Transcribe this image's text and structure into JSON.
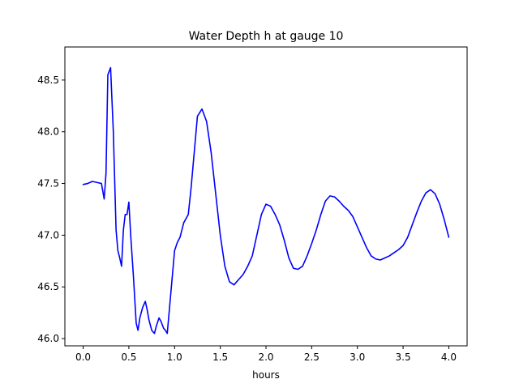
{
  "chart_data": {
    "type": "line",
    "title": "Water Depth h at gauge 10",
    "xlabel": "hours",
    "ylabel": "",
    "xlim": [
      -0.2,
      4.2
    ],
    "ylim": [
      45.93,
      48.82
    ],
    "xticks": [
      0.0,
      0.5,
      1.0,
      1.5,
      2.0,
      2.5,
      3.0,
      3.5,
      4.0
    ],
    "xtick_labels": [
      "0.0",
      "0.5",
      "1.0",
      "1.5",
      "2.0",
      "2.5",
      "3.0",
      "3.5",
      "4.0"
    ],
    "yticks": [
      46.0,
      46.5,
      47.0,
      47.5,
      48.0,
      48.5
    ],
    "ytick_labels": [
      "46.0",
      "46.5",
      "47.0",
      "47.5",
      "48.0",
      "48.5"
    ],
    "grid": false,
    "series": [
      {
        "color": "#0000ff",
        "x": [
          0.0,
          0.05,
          0.1,
          0.15,
          0.2,
          0.23,
          0.25,
          0.27,
          0.3,
          0.33,
          0.36,
          0.38,
          0.4,
          0.42,
          0.44,
          0.46,
          0.48,
          0.5,
          0.52,
          0.55,
          0.58,
          0.6,
          0.62,
          0.65,
          0.68,
          0.7,
          0.72,
          0.75,
          0.78,
          0.8,
          0.83,
          0.85,
          0.88,
          0.9,
          0.92,
          0.95,
          0.98,
          1.0,
          1.03,
          1.06,
          1.1,
          1.15,
          1.18,
          1.2,
          1.25,
          1.3,
          1.35,
          1.4,
          1.45,
          1.5,
          1.55,
          1.6,
          1.65,
          1.68,
          1.7,
          1.75,
          1.8,
          1.85,
          1.9,
          1.95,
          2.0,
          2.05,
          2.1,
          2.15,
          2.2,
          2.25,
          2.3,
          2.35,
          2.4,
          2.45,
          2.5,
          2.55,
          2.6,
          2.65,
          2.7,
          2.75,
          2.8,
          2.85,
          2.9,
          2.95,
          3.0,
          3.05,
          3.1,
          3.15,
          3.2,
          3.25,
          3.3,
          3.35,
          3.4,
          3.45,
          3.5,
          3.55,
          3.6,
          3.65,
          3.7,
          3.75,
          3.8,
          3.85,
          3.9,
          3.95,
          4.0
        ],
        "y": [
          47.49,
          47.5,
          47.52,
          47.51,
          47.5,
          47.35,
          47.6,
          48.55,
          48.62,
          48.0,
          47.05,
          46.85,
          46.78,
          46.7,
          47.05,
          47.2,
          47.2,
          47.32,
          47.0,
          46.6,
          46.15,
          46.08,
          46.2,
          46.3,
          46.36,
          46.28,
          46.18,
          46.08,
          46.05,
          46.12,
          46.2,
          46.17,
          46.1,
          46.08,
          46.05,
          46.35,
          46.65,
          46.85,
          46.93,
          46.98,
          47.12,
          47.2,
          47.45,
          47.65,
          48.15,
          48.22,
          48.1,
          47.8,
          47.4,
          47.0,
          46.7,
          46.55,
          46.52,
          46.55,
          46.57,
          46.62,
          46.7,
          46.8,
          47.0,
          47.2,
          47.3,
          47.28,
          47.2,
          47.1,
          46.95,
          46.78,
          46.68,
          46.67,
          46.7,
          46.8,
          46.92,
          47.05,
          47.2,
          47.33,
          47.38,
          47.37,
          47.33,
          47.28,
          47.24,
          47.18,
          47.08,
          46.98,
          46.88,
          46.8,
          46.77,
          46.76,
          46.78,
          46.8,
          46.83,
          46.86,
          46.9,
          46.98,
          47.1,
          47.22,
          47.33,
          47.41,
          47.44,
          47.4,
          47.3,
          47.15,
          46.98
        ]
      }
    ]
  }
}
